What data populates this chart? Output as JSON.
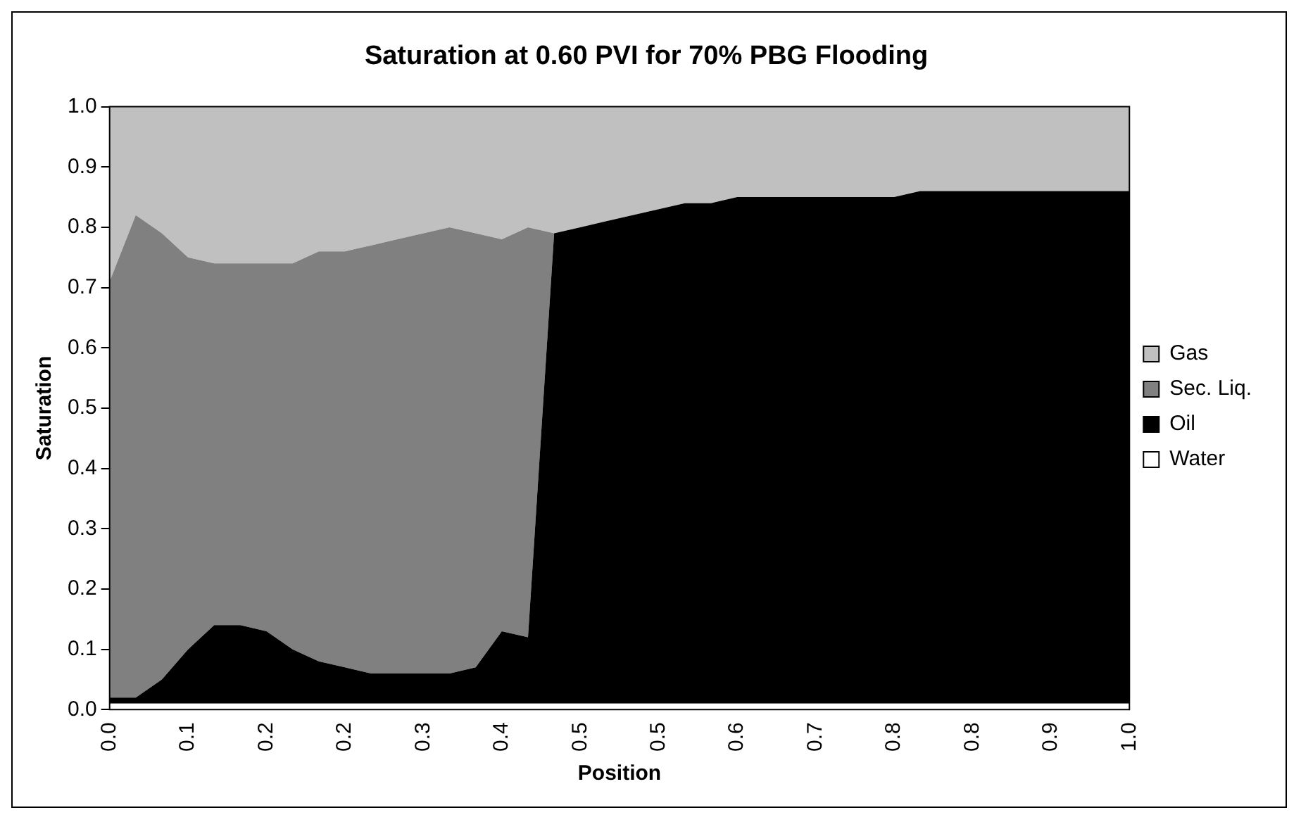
{
  "chart_data": {
    "type": "area",
    "stacked": true,
    "title": "Saturation at 0.60 PVI for 70% PBG Flooding",
    "xlabel": "Position",
    "ylabel": "Saturation",
    "categories": [
      "0.0",
      null,
      null,
      "0.1",
      null,
      null,
      "0.2",
      null,
      null,
      "0.2",
      null,
      null,
      "0.3",
      null,
      null,
      "0.4",
      null,
      null,
      "0.5",
      null,
      null,
      "0.5",
      null,
      null,
      "0.6",
      null,
      null,
      "0.7",
      null,
      null,
      "0.8",
      null,
      null,
      "0.8",
      null,
      null,
      "0.9",
      null,
      null,
      "1.0"
    ],
    "series": [
      {
        "name": "Water",
        "color": "#ffffff",
        "values": [
          0.01,
          0.01,
          0.01,
          0.01,
          0.01,
          0.01,
          0.01,
          0.01,
          0.01,
          0.01,
          0.01,
          0.01,
          0.01,
          0.01,
          0.01,
          0.01,
          0.01,
          0.01,
          0.01,
          0.01,
          0.01,
          0.01,
          0.01,
          0.01,
          0.01,
          0.01,
          0.01,
          0.01,
          0.01,
          0.01,
          0.01,
          0.01,
          0.01,
          0.01,
          0.01,
          0.01,
          0.01,
          0.01,
          0.01,
          0.01
        ]
      },
      {
        "name": "Oil",
        "color": "#000000",
        "values": [
          0.01,
          0.01,
          0.04,
          0.09,
          0.13,
          0.13,
          0.12,
          0.09,
          0.07,
          0.06,
          0.05,
          0.05,
          0.05,
          0.05,
          0.06,
          0.12,
          0.11,
          0.78,
          0.79,
          0.8,
          0.81,
          0.82,
          0.83,
          0.83,
          0.84,
          0.84,
          0.84,
          0.84,
          0.84,
          0.84,
          0.84,
          0.85,
          0.85,
          0.85,
          0.85,
          0.85,
          0.85,
          0.85,
          0.85,
          0.85
        ]
      },
      {
        "name": "Sec. Liq.",
        "color": "#808080",
        "values": [
          0.69,
          0.8,
          0.74,
          0.65,
          0.6,
          0.6,
          0.61,
          0.64,
          0.68,
          0.69,
          0.71,
          0.72,
          0.73,
          0.74,
          0.72,
          0.65,
          0.68,
          0,
          0,
          0,
          0,
          0,
          0,
          0,
          0,
          0,
          0,
          0,
          0,
          0,
          0,
          0,
          0,
          0,
          0,
          0,
          0,
          0,
          0,
          0
        ]
      },
      {
        "name": "Gas",
        "color": "#c0c0c0",
        "values": [
          0.29,
          0.18,
          0.21,
          0.25,
          0.26,
          0.26,
          0.26,
          0.26,
          0.24,
          0.24,
          0.23,
          0.22,
          0.21,
          0.2,
          0.21,
          0.22,
          0.2,
          0.21,
          0.2,
          0.19,
          0.18,
          0.17,
          0.16,
          0.16,
          0.15,
          0.15,
          0.15,
          0.15,
          0.15,
          0.15,
          0.15,
          0.14,
          0.14,
          0.14,
          0.14,
          0.14,
          0.14,
          0.14,
          0.14,
          0.14
        ]
      }
    ],
    "ylim": [
      0,
      1
    ],
    "yticks": [
      {
        "value": 0,
        "label": "0.0"
      },
      {
        "value": 0.1,
        "label": "0.1"
      },
      {
        "value": 0.2,
        "label": "0.2"
      },
      {
        "value": 0.3,
        "label": "0.3"
      },
      {
        "value": 0.4,
        "label": "0.4"
      },
      {
        "value": 0.5,
        "label": "0.5"
      },
      {
        "value": 0.6,
        "label": "0.6"
      },
      {
        "value": 0.7,
        "label": "0.7"
      },
      {
        "value": 0.8,
        "label": "0.8"
      },
      {
        "value": 0.9,
        "label": "0.9"
      },
      {
        "value": 1,
        "label": "1.0"
      }
    ],
    "grid": false,
    "legend": "right"
  }
}
